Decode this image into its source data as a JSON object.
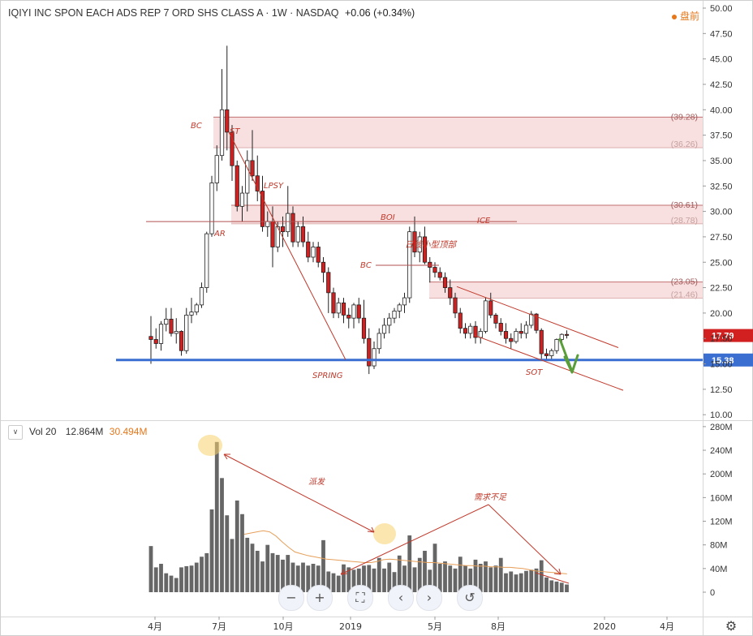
{
  "header": {
    "title": "IQIYI INC SPON EACH ADS REP 7 ORD SHS CLASS A · 1W · NASDAQ",
    "change": "+0.06 (+0.34%)",
    "premarket": "盘前"
  },
  "volume_legend": {
    "name": "Vol 20",
    "value": "12.864M",
    "ma_value": "30.494M"
  },
  "toolbar": {
    "zoom_out": "−",
    "zoom_in": "+",
    "fit": "⛶",
    "back": "‹",
    "forward": "›",
    "reset": "↺"
  },
  "colors": {
    "up": "#ffffff",
    "down": "#d21f1f",
    "wick": "#222222",
    "support": "#3a6fd1",
    "zone_fill": "#f7d6d6",
    "zone_line": "#c07070",
    "annotation": "#c0392b",
    "volume_bar": "#666666",
    "volume_ma": "#e6a05a",
    "arrow_green": "#5a9e3a",
    "last_price": "#d21f1f"
  },
  "chart_data": [
    {
      "type": "candlestick",
      "y_axis_ticks": [
        "50.00",
        "47.50",
        "45.00",
        "42.50",
        "40.00",
        "37.50",
        "35.00",
        "32.50",
        "30.00",
        "27.50",
        "25.00",
        "22.50",
        "20.00",
        "17.50",
        "15.00",
        "12.50",
        "10.00"
      ],
      "ylim": [
        10.0,
        50.0
      ],
      "x_axis_labels": [
        "4月",
        "7月",
        "10月",
        "2019",
        "5月",
        "8月",
        "2020",
        "4月"
      ],
      "last_price": "17.79",
      "support_label": "15.38",
      "support_level": 15.38,
      "candles": [
        [
          17.7,
          19.7,
          15.0,
          17.4
        ],
        [
          17.4,
          18.5,
          16.5,
          17.0
        ],
        [
          17.0,
          19.2,
          16.3,
          18.9
        ],
        [
          18.9,
          20.5,
          18.2,
          19.4
        ],
        [
          19.4,
          20.5,
          17.7,
          18.0
        ],
        [
          18.0,
          19.5,
          17.0,
          18.2
        ],
        [
          18.2,
          18.3,
          15.8,
          16.3
        ],
        [
          16.3,
          20.5,
          16.0,
          19.8
        ],
        [
          19.8,
          21.5,
          19.0,
          20.1
        ],
        [
          20.1,
          21.0,
          19.8,
          20.8
        ],
        [
          20.8,
          23.0,
          20.5,
          22.5
        ],
        [
          22.5,
          28.0,
          22.0,
          27.8
        ],
        [
          27.8,
          33.5,
          27.5,
          32.8
        ],
        [
          32.8,
          36.5,
          32.0,
          35.5
        ],
        [
          35.5,
          44.0,
          35.0,
          40.0
        ],
        [
          40.0,
          46.3,
          36.0,
          37.8
        ],
        [
          37.8,
          38.5,
          33.0,
          34.5
        ],
        [
          34.5,
          35.0,
          30.0,
          30.5
        ],
        [
          30.5,
          32.5,
          29.0,
          31.8
        ],
        [
          31.8,
          36.0,
          30.0,
          35.0
        ],
        [
          35.0,
          38.0,
          33.0,
          33.5
        ],
        [
          33.5,
          35.5,
          31.0,
          32.0
        ],
        [
          32.0,
          33.5,
          28.0,
          28.5
        ],
        [
          28.5,
          30.0,
          27.5,
          29.0
        ],
        [
          29.0,
          30.5,
          24.5,
          26.5
        ],
        [
          26.5,
          29.0,
          26.0,
          28.5
        ],
        [
          28.5,
          29.5,
          26.5,
          28.0
        ],
        [
          28.0,
          32.5,
          27.5,
          29.8
        ],
        [
          29.8,
          30.5,
          26.5,
          27.0
        ],
        [
          27.0,
          29.0,
          26.5,
          28.5
        ],
        [
          28.5,
          29.5,
          26.5,
          27.0
        ],
        [
          27.0,
          28.0,
          25.0,
          25.5
        ],
        [
          25.5,
          27.0,
          25.0,
          26.5
        ],
        [
          26.5,
          27.0,
          24.5,
          25.0
        ],
        [
          25.0,
          25.5,
          23.0,
          24.0
        ],
        [
          24.0,
          24.5,
          20.0,
          22.0
        ],
        [
          22.0,
          22.5,
          19.5,
          20.0
        ],
        [
          20.0,
          21.5,
          19.5,
          21.0
        ],
        [
          21.0,
          21.5,
          19.0,
          19.8
        ],
        [
          19.8,
          20.5,
          18.5,
          19.5
        ],
        [
          19.5,
          21.0,
          18.5,
          20.8
        ],
        [
          20.8,
          21.5,
          19.0,
          19.5
        ],
        [
          19.5,
          21.3,
          17.0,
          17.5
        ],
        [
          17.5,
          18.5,
          14.0,
          14.8
        ],
        [
          14.8,
          17.2,
          14.5,
          16.5
        ],
        [
          16.5,
          18.5,
          16.0,
          18.0
        ],
        [
          18.0,
          19.5,
          17.5,
          18.8
        ],
        [
          18.8,
          20.0,
          18.0,
          19.5
        ],
        [
          19.5,
          20.5,
          19.0,
          20.2
        ],
        [
          20.2,
          21.0,
          19.5,
          20.8
        ],
        [
          20.8,
          22.0,
          20.0,
          21.5
        ],
        [
          21.5,
          28.5,
          21.0,
          28.0
        ],
        [
          28.0,
          29.5,
          25.5,
          26.0
        ],
        [
          26.0,
          28.0,
          25.0,
          27.5
        ],
        [
          27.5,
          28.5,
          24.8,
          25.0
        ],
        [
          25.0,
          25.5,
          23.0,
          24.5
        ],
        [
          24.5,
          25.0,
          23.5,
          24.0
        ],
        [
          24.0,
          24.5,
          23.2,
          23.5
        ],
        [
          23.5,
          24.0,
          22.0,
          22.5
        ],
        [
          22.5,
          23.3,
          20.8,
          21.5
        ],
        [
          21.5,
          22.0,
          19.5,
          20.0
        ],
        [
          20.0,
          20.5,
          18.0,
          18.5
        ],
        [
          18.5,
          19.0,
          17.5,
          18.0
        ],
        [
          18.0,
          19.0,
          17.5,
          18.7
        ],
        [
          18.7,
          19.2,
          17.0,
          17.6
        ],
        [
          17.6,
          18.5,
          17.0,
          18.2
        ],
        [
          18.2,
          21.5,
          18.0,
          21.2
        ],
        [
          21.2,
          22.0,
          19.5,
          19.8
        ],
        [
          19.8,
          20.0,
          18.5,
          19.0
        ],
        [
          19.0,
          19.5,
          17.8,
          18.2
        ],
        [
          18.2,
          19.0,
          17.0,
          17.5
        ],
        [
          17.5,
          18.0,
          16.5,
          17.2
        ],
        [
          17.2,
          18.5,
          17.0,
          18.2
        ],
        [
          18.2,
          19.0,
          17.5,
          18.0
        ],
        [
          18.0,
          19.2,
          17.5,
          18.8
        ],
        [
          18.8,
          20.2,
          18.5,
          19.9
        ],
        [
          19.9,
          20.0,
          18.0,
          18.3
        ],
        [
          18.3,
          18.5,
          15.5,
          16.0
        ],
        [
          16.0,
          16.5,
          15.3,
          15.8
        ],
        [
          15.8,
          16.5,
          15.3,
          16.3
        ],
        [
          16.3,
          17.5,
          16.0,
          17.4
        ],
        [
          17.4,
          18.0,
          17.0,
          17.9
        ],
        [
          17.9,
          18.3,
          17.5,
          17.8
        ]
      ],
      "resistance_zones": [
        {
          "top": 39.28,
          "bottom": 36.26,
          "top_label": "(39.28)",
          "bottom_label": "(36.26)"
        },
        {
          "top": 30.61,
          "bottom": 28.78,
          "top_label": "(30.61)",
          "bottom_label": "(28.78)"
        },
        {
          "top": 23.05,
          "bottom": 21.46,
          "top_label": "(23.05)",
          "bottom_label": "(21.46)"
        }
      ],
      "annotations": [
        "BC",
        "ST",
        "LPSY",
        "AR",
        "BOI",
        "BC",
        "ICE",
        "SPRING",
        "SOT",
        "日线小型顶部"
      ]
    },
    {
      "type": "bar",
      "title": "Vol 20",
      "y_axis_ticks": [
        "280M",
        "240M",
        "200M",
        "160M",
        "120M",
        "80M",
        "40M",
        "0"
      ],
      "ylim": [
        0,
        280
      ],
      "volumes": [
        78,
        42,
        48,
        32,
        28,
        24,
        42,
        44,
        45,
        50,
        60,
        66,
        140,
        254,
        193,
        130,
        90,
        155,
        132,
        92,
        82,
        70,
        52,
        80,
        66,
        63,
        55,
        63,
        50,
        45,
        50,
        45,
        48,
        45,
        88,
        35,
        32,
        28,
        47,
        42,
        38,
        40,
        45,
        46,
        40,
        58,
        40,
        50,
        34,
        62,
        45,
        96,
        42,
        58,
        70,
        38,
        82,
        48,
        52,
        45,
        40,
        60,
        45,
        40,
        55,
        48,
        52,
        42,
        45,
        58,
        32,
        35,
        30,
        32,
        36,
        38,
        40,
        54,
        25,
        20,
        18,
        16,
        13
      ],
      "ma_line": [
        98,
        100,
        102,
        104,
        102,
        95,
        85,
        76,
        68,
        65,
        62,
        60,
        58,
        56,
        55,
        54,
        53,
        52,
        51,
        50,
        50,
        52,
        55,
        56,
        55,
        54,
        53,
        52,
        51,
        50,
        50,
        49,
        48,
        47,
        46,
        45,
        45,
        44,
        44,
        43,
        43,
        42,
        42,
        41,
        40,
        38,
        36,
        35,
        34,
        33,
        32,
        31
      ],
      "annotations": [
        "派发",
        "需求不足"
      ]
    }
  ]
}
